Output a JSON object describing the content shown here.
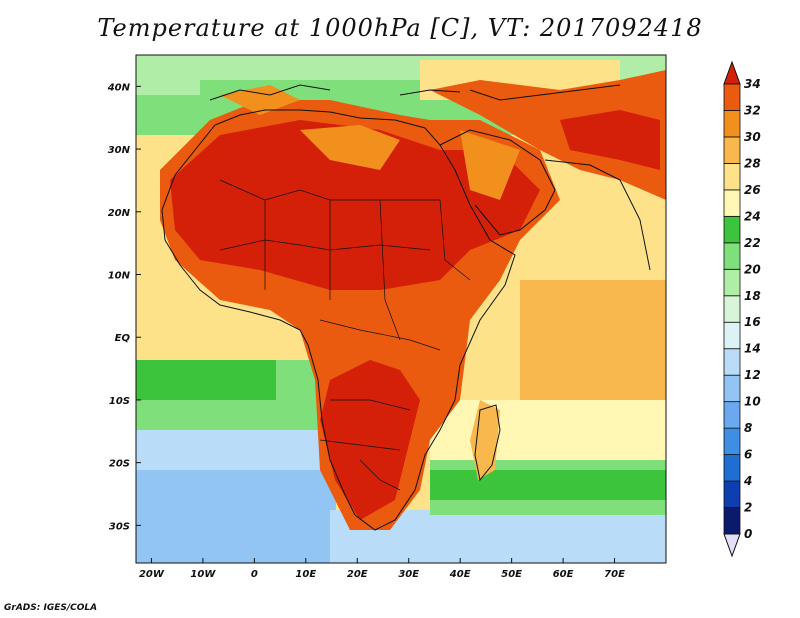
{
  "title": "Temperature at 1000hPa [C], VT: 2017092418",
  "credit": "GrADS: IGES/COLA",
  "map": {
    "lon_range": [
      -23,
      80
    ],
    "lat_range": [
      -36,
      45
    ],
    "lat_ticks": [
      {
        "value": 40,
        "label": "40N"
      },
      {
        "value": 30,
        "label": "30N"
      },
      {
        "value": 20,
        "label": "20N"
      },
      {
        "value": 10,
        "label": "10N"
      },
      {
        "value": 0,
        "label": "EQ"
      },
      {
        "value": -10,
        "label": "10S"
      },
      {
        "value": -20,
        "label": "20S"
      },
      {
        "value": -30,
        "label": "30S"
      }
    ],
    "lon_ticks": [
      {
        "value": -20,
        "label": "20W"
      },
      {
        "value": -10,
        "label": "10W"
      },
      {
        "value": 0,
        "label": "0"
      },
      {
        "value": 10,
        "label": "10E"
      },
      {
        "value": 20,
        "label": "20E"
      },
      {
        "value": 30,
        "label": "30E"
      },
      {
        "value": 40,
        "label": "40E"
      },
      {
        "value": 50,
        "label": "50E"
      },
      {
        "value": 60,
        "label": "60E"
      },
      {
        "value": 70,
        "label": "70E"
      }
    ]
  },
  "colorbar": {
    "levels": [
      "0",
      "2",
      "4",
      "6",
      "8",
      "10",
      "12",
      "14",
      "16",
      "18",
      "20",
      "22",
      "24",
      "26",
      "28",
      "30",
      "32",
      "34"
    ],
    "colors": [
      "#0c1a6e",
      "#0d3fb0",
      "#1f6ed4",
      "#3f8ee6",
      "#6aa9ef",
      "#92c4f4",
      "#b9dcf8",
      "#dcf2f4",
      "#d8f5d8",
      "#b0eea8",
      "#7fdf7a",
      "#3cc43c",
      "#fff7b3",
      "#fde28a",
      "#f8b84e",
      "#f2901e",
      "#ea5a0f",
      "#d42008"
    ],
    "below_color": "#e4def6"
  }
}
